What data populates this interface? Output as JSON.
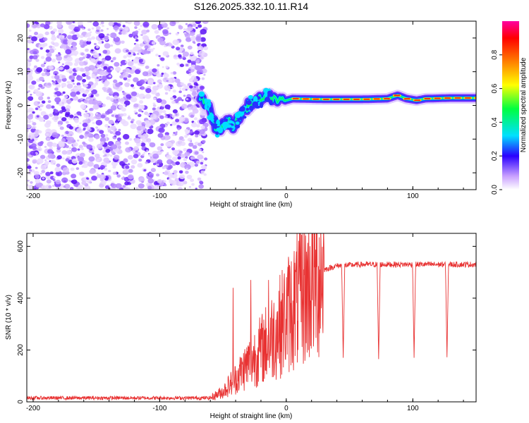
{
  "title": "S126.2025.332.10.11.R14",
  "chart_data": [
    {
      "type": "heatmap",
      "name": "spectrogram",
      "xlabel": "Height of straight line (km)",
      "ylabel": "Frequency (Hz)",
      "xlim": [
        -205,
        150
      ],
      "ylim": [
        -25,
        25
      ],
      "xticks": [
        -200,
        -100,
        0,
        100
      ],
      "xtick_labels": [
        "-200",
        "-100",
        "0",
        "100"
      ],
      "yticks": [
        -20,
        -10,
        0,
        10,
        20
      ],
      "ytick_labels": [
        "-20",
        "-10",
        "0",
        "10",
        "20"
      ],
      "colorbar": {
        "label": "Normalized spectral amplitude",
        "range": [
          0.0,
          1.0
        ],
        "ticks": [
          0.0,
          0.2,
          0.4,
          0.6,
          0.8
        ],
        "tick_labels": [
          "0.0",
          "0.2",
          "0.4",
          "0.6",
          "0.8"
        ]
      },
      "noise_region_x": [
        -205,
        -68
      ],
      "carrier_track": [
        {
          "x": -68,
          "f": 2
        },
        {
          "x": -65,
          "f": 1
        },
        {
          "x": -62,
          "f": 0
        },
        {
          "x": -58,
          "f": -4
        },
        {
          "x": -55,
          "f": -7
        },
        {
          "x": -52,
          "f": -7
        },
        {
          "x": -48,
          "f": -5
        },
        {
          "x": -45,
          "f": -5
        },
        {
          "x": -42,
          "f": -6
        },
        {
          "x": -38,
          "f": -4
        },
        {
          "x": -34,
          "f": -2
        },
        {
          "x": -30,
          "f": 0
        },
        {
          "x": -26,
          "f": 1
        },
        {
          "x": -22,
          "f": 1.5
        },
        {
          "x": -18,
          "f": 2.5
        },
        {
          "x": -12,
          "f": 2.5
        },
        {
          "x": -8,
          "f": 2
        },
        {
          "x": -4,
          "f": 1
        },
        {
          "x": 0,
          "f": 1.5
        },
        {
          "x": 5,
          "f": 2
        },
        {
          "x": 30,
          "f": 1.8
        },
        {
          "x": 60,
          "f": 1.8
        },
        {
          "x": 80,
          "f": 2
        },
        {
          "x": 88,
          "f": 3
        },
        {
          "x": 95,
          "f": 2
        },
        {
          "x": 103,
          "f": 1.5
        },
        {
          "x": 110,
          "f": 2
        },
        {
          "x": 130,
          "f": 2.2
        },
        {
          "x": 150,
          "f": 2.2
        }
      ]
    },
    {
      "type": "line",
      "name": "snr",
      "xlabel": "Height of straight line (km)",
      "ylabel": "SNR (10 * v/v)",
      "xlim": [
        -205,
        150
      ],
      "ylim": [
        0,
        650
      ],
      "xticks": [
        -200,
        -100,
        0,
        100
      ],
      "xtick_labels": [
        "-200",
        "-100",
        "0",
        "100"
      ],
      "yticks": [
        0,
        200,
        400,
        600
      ],
      "ytick_labels": [
        "0",
        "200",
        "400",
        "600"
      ],
      "color": "#e83232",
      "envelope": [
        {
          "x": -205,
          "y": 15
        },
        {
          "x": -60,
          "y": 15
        },
        {
          "x": -50,
          "y": 40
        },
        {
          "x": -40,
          "y": 90
        },
        {
          "x": -30,
          "y": 150
        },
        {
          "x": -20,
          "y": 200
        },
        {
          "x": -10,
          "y": 260
        },
        {
          "x": 0,
          "y": 330
        },
        {
          "x": 10,
          "y": 400
        },
        {
          "x": 20,
          "y": 460
        },
        {
          "x": 30,
          "y": 510
        },
        {
          "x": 40,
          "y": 525
        },
        {
          "x": 60,
          "y": 530
        },
        {
          "x": 150,
          "y": 530
        }
      ],
      "dips": [
        {
          "x": 45,
          "y": 170
        },
        {
          "x": 73,
          "y": 165
        },
        {
          "x": 101,
          "y": 170
        },
        {
          "x": 127,
          "y": 172
        }
      ],
      "spikes": [
        {
          "x": -42,
          "y": 440
        },
        {
          "x": -28,
          "y": 470
        },
        {
          "x": -14,
          "y": 470
        },
        {
          "x": -5,
          "y": 490
        },
        {
          "x": 2,
          "y": 540
        },
        {
          "x": 8,
          "y": 580
        },
        {
          "x": 12,
          "y": 645
        },
        {
          "x": 18,
          "y": 500
        },
        {
          "x": 24,
          "y": 520
        }
      ]
    }
  ]
}
